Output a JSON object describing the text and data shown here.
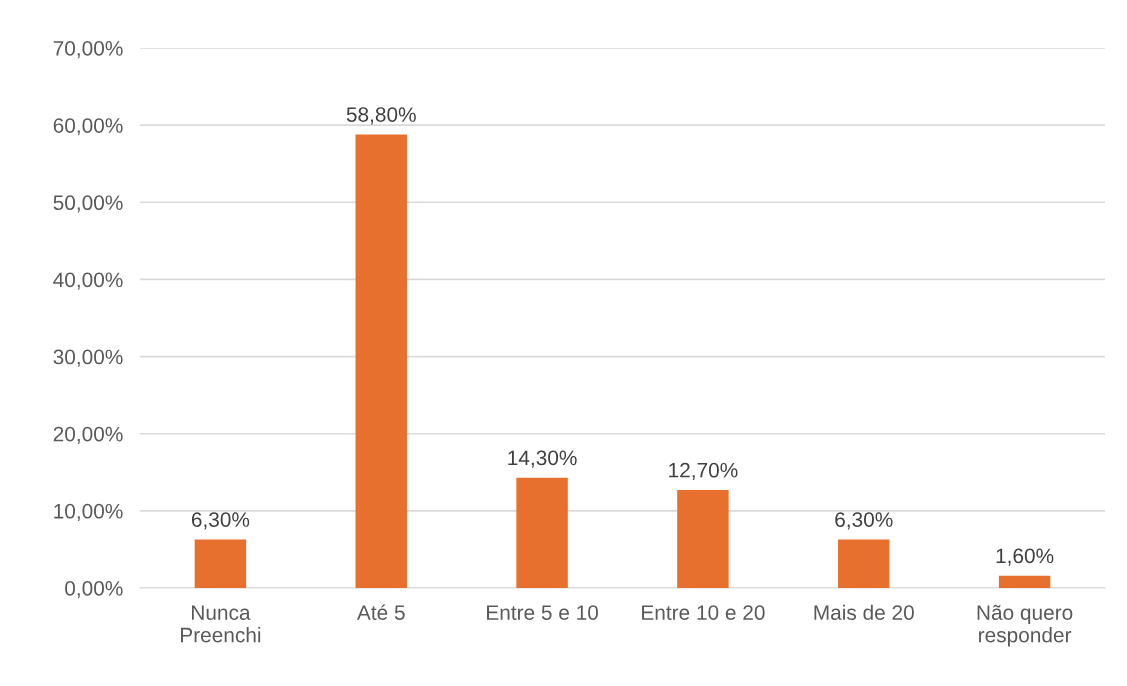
{
  "chart_data": {
    "type": "bar",
    "categories": [
      "Nunca\nPreenchi",
      "Até 5",
      "Entre 5 e 10",
      "Entre 10 e 20",
      "Mais de 20",
      "Não quero\nresponder"
    ],
    "values": [
      6.3,
      58.8,
      14.3,
      12.7,
      6.3,
      1.6
    ],
    "value_labels": [
      "6,30%",
      "58,80%",
      "14,30%",
      "12,70%",
      "6,30%",
      "1,60%"
    ],
    "color": "#e8702f",
    "ylim": [
      0,
      70
    ],
    "yticks": [
      {
        "value": 0,
        "label": "0,00%"
      },
      {
        "value": 10,
        "label": "10,00%"
      },
      {
        "value": 20,
        "label": "20,00%"
      },
      {
        "value": 30,
        "label": "30,00%"
      },
      {
        "value": 40,
        "label": "40,00%"
      },
      {
        "value": 50,
        "label": "50,00%"
      },
      {
        "value": 60,
        "label": "60,00%"
      },
      {
        "value": 70,
        "label": "70,00%"
      }
    ],
    "grid": "y",
    "legend": false
  }
}
